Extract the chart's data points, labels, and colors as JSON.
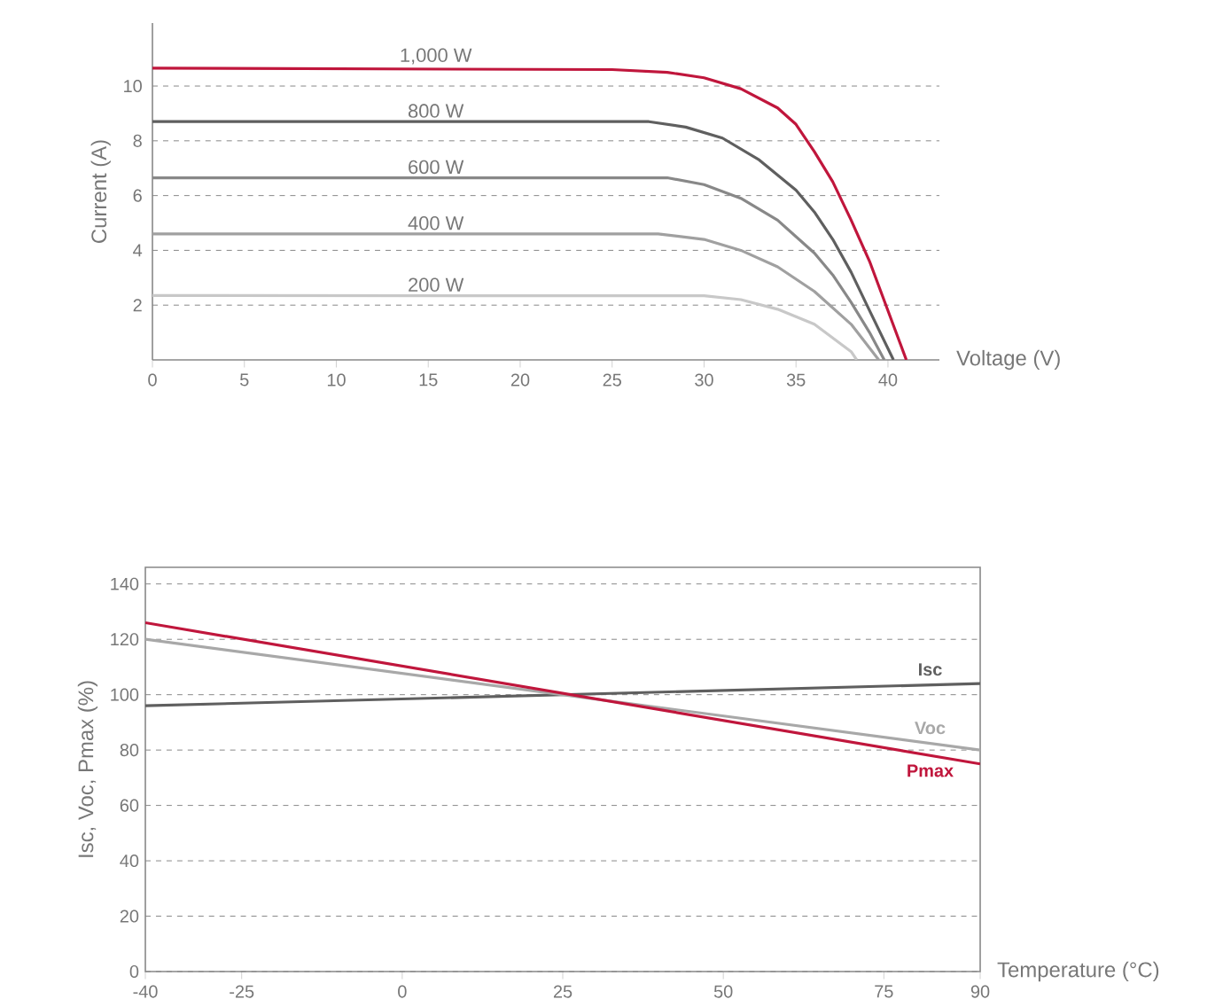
{
  "chart_data": [
    {
      "type": "line",
      "xlabel": "Voltage (V)",
      "ylabel": "Current (A)",
      "xlim": [
        0,
        42.8
      ],
      "ylim": [
        0,
        12.3
      ],
      "xticks": [
        0,
        5,
        10,
        15,
        20,
        25,
        30,
        35,
        40
      ],
      "yticks": [
        2,
        4,
        6,
        8,
        10
      ],
      "grid": "y",
      "series": [
        {
          "name": "1,000 W",
          "color": "#c0163c",
          "x": [
            0,
            25,
            28,
            30,
            32,
            34,
            35,
            36,
            37,
            38,
            39,
            40,
            41
          ],
          "values": [
            10.65,
            10.6,
            10.5,
            10.3,
            9.9,
            9.2,
            8.6,
            7.6,
            6.5,
            5.1,
            3.6,
            1.8,
            0
          ]
        },
        {
          "name": "800 W",
          "color": "#5f5f5f",
          "x": [
            0,
            27,
            29,
            31,
            33,
            35,
            36,
            37,
            38,
            39,
            40.3
          ],
          "values": [
            8.7,
            8.7,
            8.5,
            8.1,
            7.3,
            6.2,
            5.4,
            4.4,
            3.2,
            1.8,
            0
          ]
        },
        {
          "name": "600 W",
          "color": "#888888",
          "x": [
            0,
            28,
            30,
            32,
            34,
            36,
            37,
            38,
            39,
            39.8
          ],
          "values": [
            6.65,
            6.65,
            6.4,
            5.9,
            5.1,
            3.9,
            3.1,
            2.1,
            1.0,
            0
          ]
        },
        {
          "name": "400 W",
          "color": "#a0a0a0",
          "x": [
            0,
            27.5,
            30,
            32,
            34,
            36,
            38,
            39.5
          ],
          "values": [
            4.6,
            4.6,
            4.4,
            4.0,
            3.4,
            2.5,
            1.3,
            0
          ]
        },
        {
          "name": "200 W",
          "color": "#c8c8c8",
          "x": [
            0,
            30,
            32,
            34,
            36,
            38,
            38.3
          ],
          "values": [
            2.35,
            2.34,
            2.2,
            1.85,
            1.3,
            0.3,
            0
          ]
        }
      ]
    },
    {
      "type": "line",
      "xlabel": "Temperature (°C)",
      "ylabel": "Isc, Voc, Pmax (%)",
      "xlim": [
        -40,
        90
      ],
      "ylim": [
        0,
        146
      ],
      "xticks": [
        -40,
        -25,
        0,
        25,
        50,
        75,
        90
      ],
      "yticks": [
        0,
        20,
        40,
        60,
        80,
        100,
        120,
        140
      ],
      "grid": "y",
      "series": [
        {
          "name": "Isc",
          "color": "#5f5f5f",
          "x": [
            -40,
            90
          ],
          "values": [
            96,
            104
          ]
        },
        {
          "name": "Voc",
          "color": "#a8a8a8",
          "x": [
            -40,
            90
          ],
          "values": [
            120,
            80
          ]
        },
        {
          "name": "Pmax",
          "color": "#c0163c",
          "x": [
            -40,
            90
          ],
          "values": [
            126,
            75
          ]
        }
      ]
    }
  ]
}
